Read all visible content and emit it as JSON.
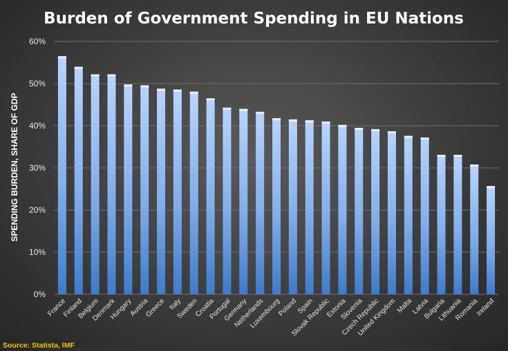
{
  "chart_data": {
    "type": "bar",
    "title": "Burden of Government Spending in EU Nations",
    "ylabel": "SPENDING BURDEN, SHARE OF GDP",
    "xlabel": "",
    "ylim": [
      0,
      60
    ],
    "yticks": [
      "0%",
      "10%",
      "20%",
      "30%",
      "40%",
      "50%",
      "60%"
    ],
    "grid": true,
    "categories": [
      "France",
      "Finland",
      "Belgium",
      "Denmark",
      "Hungary",
      "Austria",
      "Greece",
      "Italy",
      "Sweden",
      "Croatia",
      "Portugal",
      "Germany",
      "Netherlands",
      "Luxembourg",
      "Poland",
      "Spain",
      "Slovak Republic",
      "Estonia",
      "Slovenia",
      "Czech Republic",
      "United Kingdom",
      "Malta",
      "Latvia",
      "Bulgaria",
      "Lithuania",
      "Romania",
      "Ireland"
    ],
    "values": [
      56.5,
      54.0,
      52.2,
      52.2,
      49.8,
      49.6,
      48.8,
      48.6,
      48.1,
      46.5,
      44.3,
      44.0,
      43.3,
      41.8,
      41.5,
      41.3,
      41.0,
      40.2,
      39.5,
      39.2,
      38.7,
      37.6,
      37.2,
      33.1,
      33.1,
      30.8,
      25.7
    ]
  },
  "source": "Source: Statista, IMF",
  "colors": {
    "bar_top": "#b4d0fa",
    "bar_bottom": "#3f7fcf",
    "source_text": "#f2c200"
  }
}
